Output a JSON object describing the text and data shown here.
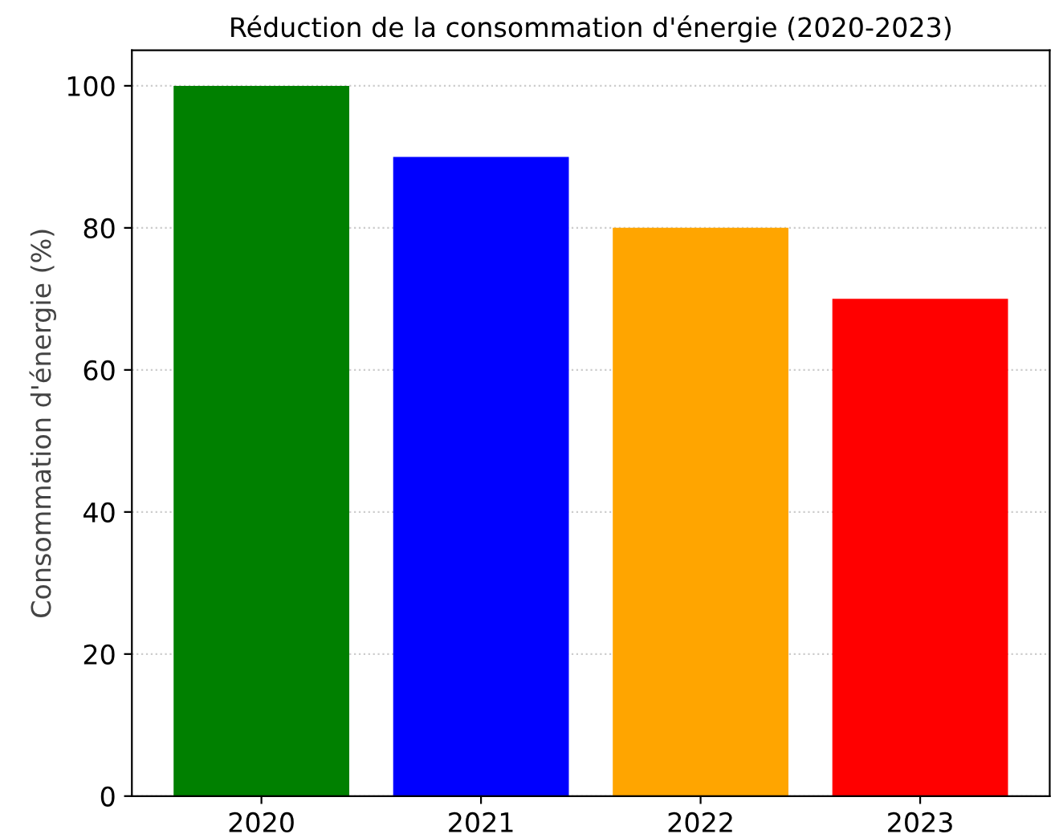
{
  "chart_data": {
    "type": "bar",
    "title": "Réduction de la consommation d'énergie (2020-2023)",
    "ylabel": "Consommation d'énergie (%)",
    "categories": [
      "2020",
      "2021",
      "2022",
      "2023"
    ],
    "values": [
      100,
      90,
      80,
      70
    ],
    "colors": [
      "#008000",
      "#0000ff",
      "#ffa500",
      "#ff0000"
    ],
    "ylim": [
      0,
      105
    ],
    "yticks": [
      0,
      20,
      40,
      60,
      80,
      100
    ],
    "grid": "y"
  }
}
